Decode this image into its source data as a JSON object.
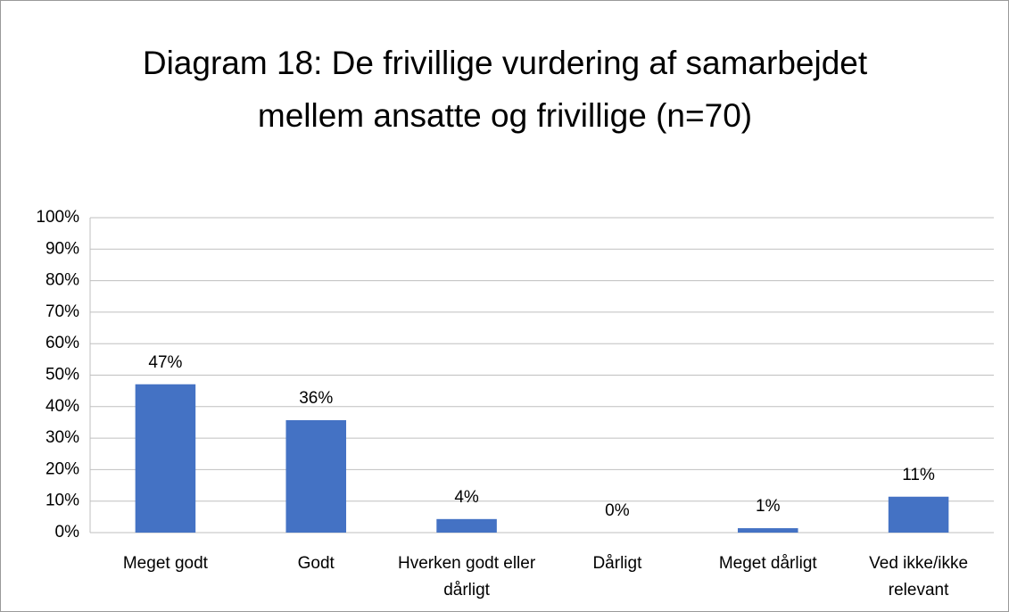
{
  "chart_data": {
    "type": "bar",
    "title": "Diagram 18: De frivillige vurdering af samarbejdet mellem ansatte og frivillige (n=70)",
    "categories": [
      "Meget godt",
      "Godt",
      "Hverken godt eller dårligt",
      "Dårligt",
      "Meget dårligt",
      "Ved ikke/ikke relevant"
    ],
    "values": [
      47.1,
      35.7,
      4.3,
      0,
      1.4,
      11.4
    ],
    "value_labels": [
      "47%",
      "36%",
      "4%",
      "0%",
      "1%",
      "11%"
    ],
    "color": "#4472c4",
    "ylim": [
      0,
      100
    ],
    "yticks": [
      {
        "value": 0,
        "label": "0%"
      },
      {
        "value": 10,
        "label": "10%"
      },
      {
        "value": 20,
        "label": "20%"
      },
      {
        "value": 30,
        "label": "30%"
      },
      {
        "value": 40,
        "label": "40%"
      },
      {
        "value": 50,
        "label": "50%"
      },
      {
        "value": 60,
        "label": "60%"
      },
      {
        "value": 70,
        "label": "70%"
      },
      {
        "value": 80,
        "label": "80%"
      },
      {
        "value": 90,
        "label": "90%"
      },
      {
        "value": 100,
        "label": "100%"
      }
    ],
    "grid": true
  }
}
